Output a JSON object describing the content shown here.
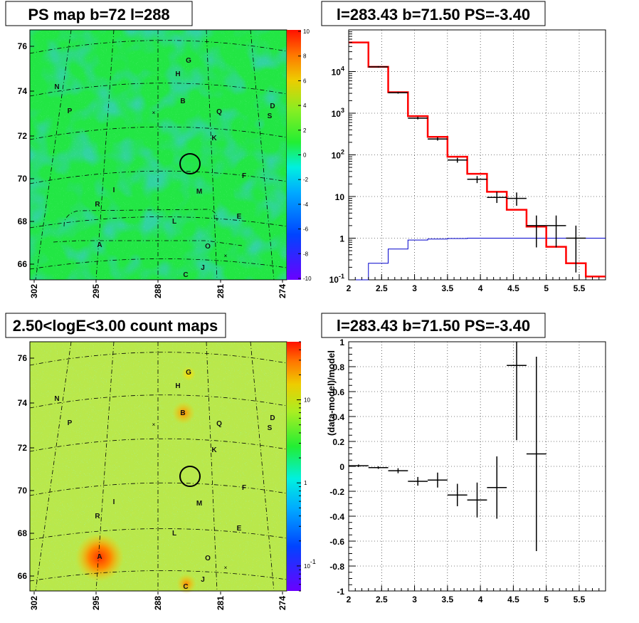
{
  "chart_data": [
    {
      "type": "heatmap",
      "title": "PS map b=72 l=288",
      "x_ticks": [
        "302",
        "295",
        "288",
        "281",
        "274"
      ],
      "y_ticks": [
        "66",
        "68",
        "70",
        "72",
        "74",
        "76"
      ],
      "colorbar": {
        "range": [
          -10,
          10
        ],
        "ticks": [
          "10",
          "8",
          "6",
          "4",
          "2",
          "0",
          "-2",
          "-4",
          "-6",
          "-8",
          "-10"
        ],
        "scale": "linear"
      },
      "source_labels": [
        "G",
        "H",
        "N",
        "B",
        "D",
        "P",
        "Q",
        "S",
        "K",
        "F",
        "I",
        "M",
        "R",
        "E",
        "L",
        "A",
        "O",
        "J",
        "C"
      ],
      "background_color": "#22e644",
      "circle_marker": {
        "l": 283.43,
        "b": 71.5
      }
    },
    {
      "type": "line",
      "title": "l=283.43 b=71.50 PS=-3.40",
      "x_range": [
        2.0,
        5.9
      ],
      "y_range": [
        0.1,
        100000
      ],
      "y_scale": "log",
      "x_ticks": [
        "2",
        "2.5",
        "3",
        "3.5",
        "4",
        "4.5",
        "5",
        "5.5"
      ],
      "y_ticks": [
        "10^-1",
        "1",
        "10",
        "10^2",
        "10^3",
        "10^4"
      ],
      "grid": true,
      "bin_edges": [
        2.0,
        2.3,
        2.6,
        2.9,
        3.2,
        3.5,
        3.8,
        4.1,
        4.4,
        4.7,
        5.0,
        5.3,
        5.6,
        5.9
      ],
      "series": [
        {
          "color": "#ff0000",
          "style": "step",
          "values": [
            50000,
            13000,
            3200,
            850,
            270,
            90,
            35,
            13,
            4.8,
            1.9,
            0.62,
            0.25,
            0.12
          ]
        },
        {
          "color": "#0000cc",
          "style": "step",
          "values": [
            0.09,
            0.25,
            0.55,
            0.9,
            0.95,
            0.98,
            1.0,
            1.0,
            1.0,
            1.0,
            1.0,
            1.0,
            1.0
          ]
        },
        {
          "color": "#000000",
          "style": "errorbar",
          "points": [
            {
              "x": 2.45,
              "y": 13000,
              "ylo": 12500,
              "yhi": 13500
            },
            {
              "x": 2.75,
              "y": 3100,
              "ylo": 2950,
              "yhi": 3250
            },
            {
              "x": 3.05,
              "y": 760,
              "ylo": 710,
              "yhi": 820
            },
            {
              "x": 3.35,
              "y": 240,
              "ylo": 220,
              "yhi": 265
            },
            {
              "x": 3.65,
              "y": 75,
              "ylo": 65,
              "yhi": 85
            },
            {
              "x": 3.95,
              "y": 26,
              "ylo": 21,
              "yhi": 31
            },
            {
              "x": 4.25,
              "y": 9.5,
              "ylo": 7,
              "yhi": 13
            },
            {
              "x": 4.55,
              "y": 9,
              "ylo": 6,
              "yhi": 12.5
            },
            {
              "x": 4.85,
              "y": 2,
              "ylo": 0.6,
              "yhi": 3.5
            },
            {
              "x": 5.15,
              "y": 2,
              "ylo": 0.6,
              "yhi": 3.5
            },
            {
              "x": 5.45,
              "y": 1,
              "ylo": 0.15,
              "yhi": 2
            }
          ]
        }
      ]
    },
    {
      "type": "heatmap",
      "title": "2.50<logE<3.00 count maps",
      "x_ticks": [
        "302",
        "295",
        "288",
        "281",
        "274"
      ],
      "y_ticks": [
        "66",
        "68",
        "70",
        "72",
        "74",
        "76"
      ],
      "colorbar": {
        "range": [
          0.05,
          50
        ],
        "ticks": [
          "10",
          "1",
          "10^-1"
        ],
        "scale": "log"
      },
      "source_labels": [
        "G",
        "H",
        "N",
        "B",
        "D",
        "P",
        "Q",
        "S",
        "K",
        "F",
        "I",
        "M",
        "R",
        "E",
        "L",
        "A",
        "O",
        "J",
        "C"
      ],
      "background_color": "#b9e84b",
      "circle_marker": {
        "l": 283.43,
        "b": 71.5
      }
    },
    {
      "type": "scatter",
      "title": "l=283.43 b=71.50 PS=-3.40",
      "ylabel": "(data-model)/model",
      "x_range": [
        2.0,
        5.9
      ],
      "y_range": [
        -1,
        1
      ],
      "x_ticks": [
        "2",
        "2.5",
        "3",
        "3.5",
        "4",
        "4.5",
        "5",
        "5.5"
      ],
      "y_ticks": [
        "1",
        "0.8",
        "0.6",
        "0.4",
        "0.2",
        "0",
        "-0.2",
        "-0.4",
        "-0.6",
        "-0.8",
        "-1"
      ],
      "grid": true,
      "points": [
        {
          "x": 2.15,
          "y": 0.005,
          "err": 0.01
        },
        {
          "x": 2.45,
          "y": -0.01,
          "err": 0.01
        },
        {
          "x": 2.75,
          "y": -0.035,
          "err": 0.02
        },
        {
          "x": 3.05,
          "y": -0.12,
          "err": 0.035
        },
        {
          "x": 3.35,
          "y": -0.11,
          "err": 0.06
        },
        {
          "x": 3.65,
          "y": -0.23,
          "err": 0.09
        },
        {
          "x": 3.95,
          "y": -0.27,
          "err": 0.14
        },
        {
          "x": 4.25,
          "y": -0.17,
          "err": 0.25
        },
        {
          "x": 4.55,
          "y": 0.81,
          "err": 0.6
        },
        {
          "x": 4.85,
          "y": 0.1,
          "err": 0.78
        }
      ]
    }
  ]
}
